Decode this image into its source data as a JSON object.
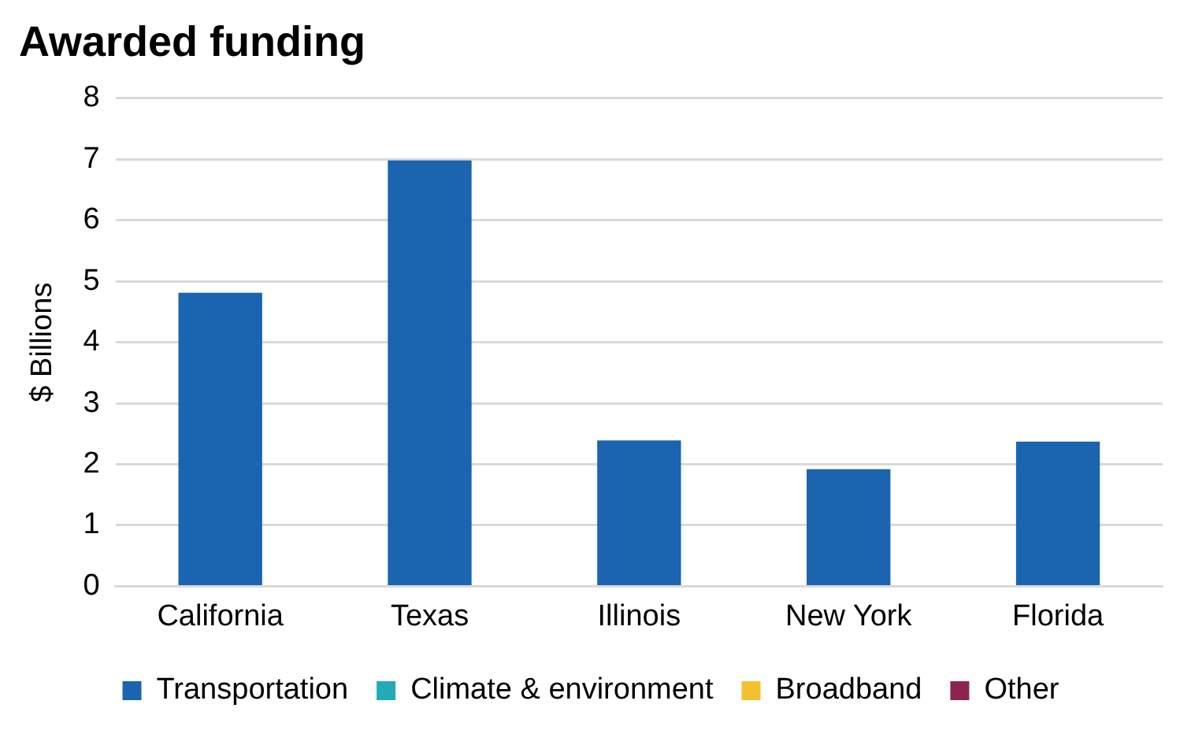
{
  "chart_data": {
    "type": "bar",
    "title": "Awarded funding",
    "ylabel": "$ Billions",
    "categories": [
      "California",
      "Texas",
      "Illinois",
      "New York",
      "Florida"
    ],
    "stacked": true,
    "series": [
      {
        "name": "Transportation",
        "color": "#1a64b0",
        "values": [
          4.81,
          6.98,
          2.39,
          1.92,
          2.37
        ]
      },
      {
        "name": "Climate & environment",
        "color": "#22aab8",
        "values": [
          0,
          0,
          0,
          0,
          0
        ]
      },
      {
        "name": "Broadband",
        "color": "#f2c12e",
        "values": [
          0,
          0,
          0,
          0,
          0
        ]
      },
      {
        "name": "Other",
        "color": "#8c2450",
        "values": [
          0,
          0,
          0,
          0,
          0
        ]
      }
    ],
    "ylim": [
      0,
      8
    ],
    "yticks": [
      0,
      1,
      2,
      3,
      4,
      5,
      6,
      7,
      8
    ],
    "grid": "y",
    "legend": "bottom"
  }
}
